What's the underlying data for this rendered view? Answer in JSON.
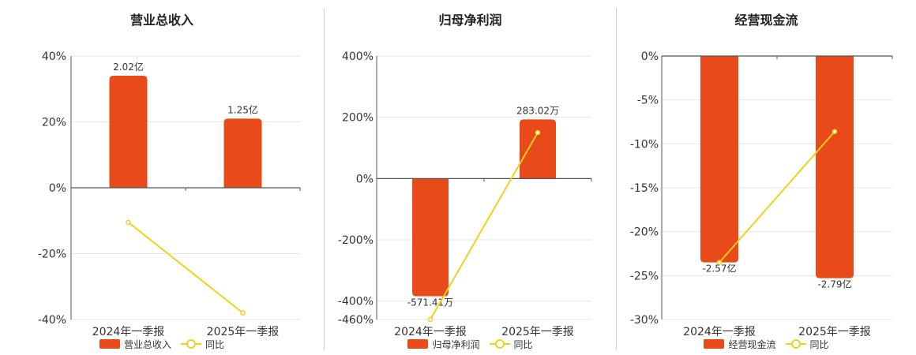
{
  "colors": {
    "bar": "#e84a1a",
    "line": "#f2d01c",
    "axis": "#555555",
    "grid": "#e6e6e6"
  },
  "charts": [
    {
      "title": "营业总收入",
      "legend": {
        "bar": "营业总收入",
        "line": "同比"
      }
    },
    {
      "title": "归母净利润",
      "legend": {
        "bar": "归母净利润",
        "line": "同比"
      }
    },
    {
      "title": "经营现金流",
      "legend": {
        "bar": "经营现金流",
        "line": "同比"
      }
    }
  ],
  "chart_data": [
    {
      "type": "bar",
      "title": "营业总收入",
      "categories": [
        "2024年一季报",
        "2025年一季报"
      ],
      "y_ticks": [
        "40%",
        "20%",
        "0%",
        "-20%",
        "-40%"
      ],
      "ylim": [
        -40,
        40
      ],
      "series": [
        {
          "name": "营业总收入",
          "type": "bar",
          "values": [
            34,
            21
          ],
          "labels": [
            "2.02亿",
            "1.25亿"
          ]
        },
        {
          "name": "同比",
          "type": "line",
          "values": [
            -10.5,
            -38
          ]
        }
      ],
      "grid": true,
      "legend": "bottom"
    },
    {
      "type": "bar",
      "title": "归母净利润",
      "categories": [
        "2024年一季报",
        "2025年一季报"
      ],
      "y_ticks": [
        "400%",
        "200%",
        "0%",
        "-200%",
        "-400%",
        "-460%"
      ],
      "ylim": [
        -460,
        400
      ],
      "series": [
        {
          "name": "归母净利润",
          "type": "bar",
          "values": [
            -384,
            193
          ],
          "labels": [
            "-571.41万",
            "283.02万"
          ]
        },
        {
          "name": "同比",
          "type": "line",
          "values": [
            -460,
            150
          ]
        }
      ],
      "grid": true,
      "legend": "bottom"
    },
    {
      "type": "bar",
      "title": "经营现金流",
      "categories": [
        "2024年一季报",
        "2025年一季报"
      ],
      "y_ticks": [
        "0%",
        "-5%",
        "-10%",
        "-15%",
        "-20%",
        "-25%",
        "-30%"
      ],
      "ylim": [
        -30,
        0
      ],
      "series": [
        {
          "name": "经营现金流",
          "type": "bar",
          "values": [
            -23.5,
            -25.3
          ],
          "labels": [
            "-2.57亿",
            "-2.79亿"
          ]
        },
        {
          "name": "同比",
          "type": "line",
          "values": [
            -23.5,
            -8.6
          ]
        }
      ],
      "grid": true,
      "legend": "bottom"
    }
  ]
}
